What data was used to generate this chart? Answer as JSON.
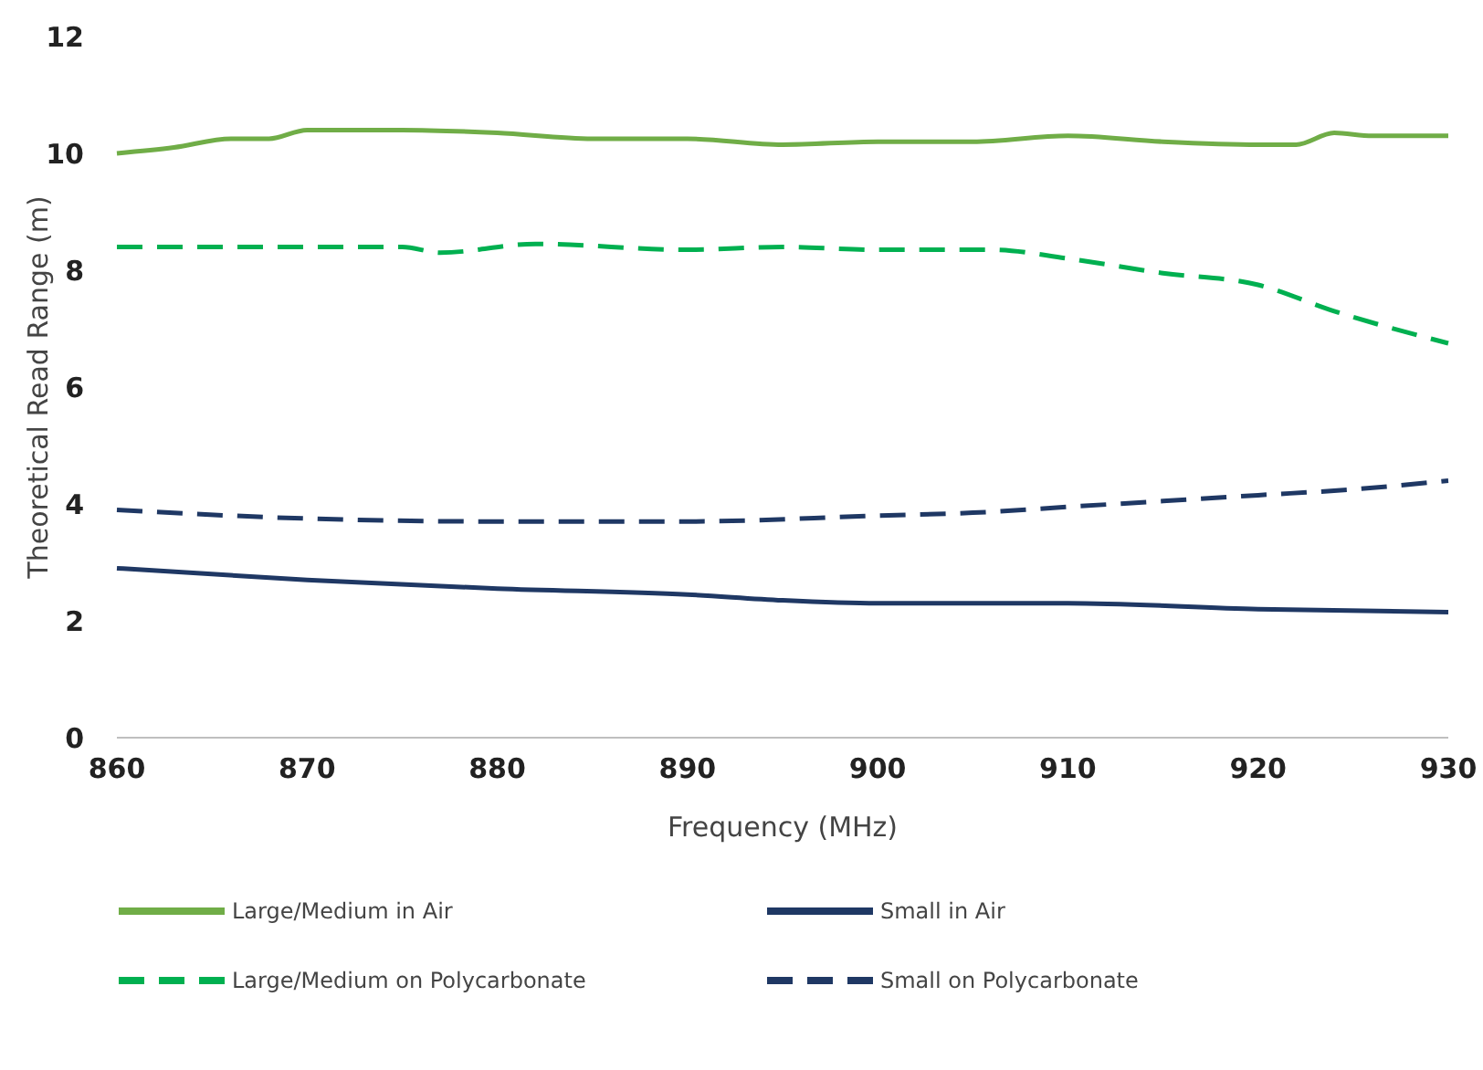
{
  "chart_data": {
    "type": "line",
    "xlabel": "Frequency (MHz)",
    "ylabel": "Theoretical Read Range (m)",
    "xlim": [
      860,
      930
    ],
    "xticks": [
      860,
      870,
      880,
      890,
      900,
      910,
      920,
      930
    ],
    "ylim": [
      0,
      12
    ],
    "yticks": [
      0,
      2,
      4,
      6,
      8,
      10,
      12
    ],
    "grid": false,
    "legend": "bottom",
    "marker": "none",
    "series": [
      {
        "name": "Large/Medium in Air",
        "color": "#70ad47",
        "line_style": "solid",
        "x": [
          860,
          863,
          866,
          868,
          870,
          875,
          880,
          885,
          890,
          895,
          900,
          905,
          910,
          915,
          920,
          922,
          924,
          926,
          930
        ],
        "values": [
          10.0,
          10.1,
          10.25,
          10.25,
          10.4,
          10.4,
          10.35,
          10.25,
          10.25,
          10.15,
          10.2,
          10.2,
          10.3,
          10.2,
          10.15,
          10.15,
          10.35,
          10.3,
          10.3
        ]
      },
      {
        "name": "Small in Air",
        "color": "#1f3864",
        "line_style": "solid",
        "x": [
          860,
          870,
          880,
          890,
          895,
          900,
          910,
          920,
          930
        ],
        "values": [
          2.9,
          2.7,
          2.55,
          2.45,
          2.35,
          2.3,
          2.3,
          2.2,
          2.15
        ]
      },
      {
        "name": "Large/Medium on Polycarbonate",
        "color": "#00b050",
        "line_style": "dashed",
        "x": [
          860,
          875,
          877,
          882,
          890,
          895,
          900,
          906,
          910,
          915,
          920,
          924,
          930
        ],
        "values": [
          8.4,
          8.4,
          8.3,
          8.45,
          8.35,
          8.4,
          8.35,
          8.35,
          8.2,
          7.95,
          7.75,
          7.3,
          6.75
        ]
      },
      {
        "name": "Small on Polycarbonate",
        "color": "#1f3864",
        "line_style": "dashed",
        "x": [
          860,
          866,
          870,
          880,
          890,
          900,
          905,
          910,
          915,
          920,
          925,
          930
        ],
        "values": [
          3.9,
          3.8,
          3.75,
          3.7,
          3.7,
          3.8,
          3.85,
          3.95,
          4.05,
          4.15,
          4.25,
          4.4
        ]
      }
    ]
  }
}
